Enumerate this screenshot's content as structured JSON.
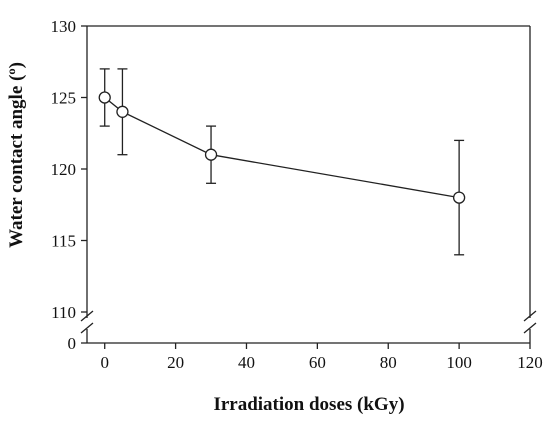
{
  "chart_data": {
    "type": "line",
    "title": "",
    "xlabel": "Irradiation doses (kGy)",
    "ylabel": "Water contact angle (º)",
    "xlim": [
      -5,
      120
    ],
    "ylim_main": [
      110,
      130
    ],
    "y_break_between": [
      0,
      110
    ],
    "x_ticks": [
      0,
      20,
      40,
      60,
      80,
      100,
      120
    ],
    "x_tick_labels": [
      "0",
      "20",
      "40",
      "60",
      "80",
      "100",
      "120"
    ],
    "y_ticks": [
      110,
      115,
      120,
      125,
      130
    ],
    "y_tick_labels": [
      "110",
      "115",
      "120",
      "125",
      "130"
    ],
    "y_zero_label": "0",
    "grid": false,
    "series": [
      {
        "marker": "open-circle",
        "x": [
          0,
          5,
          30,
          100
        ],
        "y": [
          125,
          124,
          121,
          118
        ],
        "err_low": [
          123,
          121,
          119,
          114
        ],
        "err_high": [
          127,
          127,
          123,
          122
        ]
      }
    ]
  }
}
